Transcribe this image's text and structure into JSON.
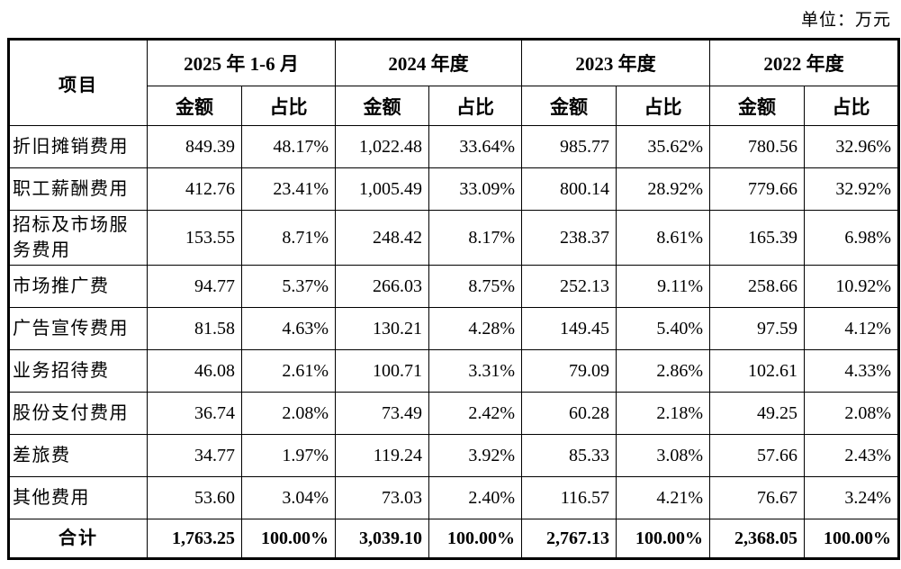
{
  "unit_label": "单位：万元",
  "table": {
    "item_header": "项目",
    "periods": [
      "2025 年 1-6 月",
      "2024 年度",
      "2023 年度",
      "2022 年度"
    ],
    "sub_headers": [
      "金额",
      "占比"
    ],
    "rows": [
      {
        "label": "折旧摊销费用",
        "values": [
          "849.39",
          "48.17%",
          "1,022.48",
          "33.64%",
          "985.77",
          "35.62%",
          "780.56",
          "32.96%"
        ]
      },
      {
        "label": "职工薪酬费用",
        "values": [
          "412.76",
          "23.41%",
          "1,005.49",
          "33.09%",
          "800.14",
          "28.92%",
          "779.66",
          "32.92%"
        ]
      },
      {
        "label": "招标及市场服务费用",
        "values": [
          "153.55",
          "8.71%",
          "248.42",
          "8.17%",
          "238.37",
          "8.61%",
          "165.39",
          "6.98%"
        ]
      },
      {
        "label": "市场推广费",
        "values": [
          "94.77",
          "5.37%",
          "266.03",
          "8.75%",
          "252.13",
          "9.11%",
          "258.66",
          "10.92%"
        ]
      },
      {
        "label": "广告宣传费用",
        "values": [
          "81.58",
          "4.63%",
          "130.21",
          "4.28%",
          "149.45",
          "5.40%",
          "97.59",
          "4.12%"
        ]
      },
      {
        "label": "业务招待费",
        "values": [
          "46.08",
          "2.61%",
          "100.71",
          "3.31%",
          "79.09",
          "2.86%",
          "102.61",
          "4.33%"
        ]
      },
      {
        "label": "股份支付费用",
        "values": [
          "36.74",
          "2.08%",
          "73.49",
          "2.42%",
          "60.28",
          "2.18%",
          "49.25",
          "2.08%"
        ]
      },
      {
        "label": "差旅费",
        "values": [
          "34.77",
          "1.97%",
          "119.24",
          "3.92%",
          "85.33",
          "3.08%",
          "57.66",
          "2.43%"
        ]
      },
      {
        "label": "其他费用",
        "values": [
          "53.60",
          "3.04%",
          "73.03",
          "2.40%",
          "116.57",
          "4.21%",
          "76.67",
          "3.24%"
        ]
      }
    ],
    "total_row": {
      "label": "合计",
      "values": [
        "1,763.25",
        "100.00%",
        "3,039.10",
        "100.00%",
        "2,767.13",
        "100.00%",
        "2,368.05",
        "100.00%"
      ]
    }
  },
  "colors": {
    "text": "#000000",
    "border": "#000000",
    "background": "#ffffff"
  }
}
